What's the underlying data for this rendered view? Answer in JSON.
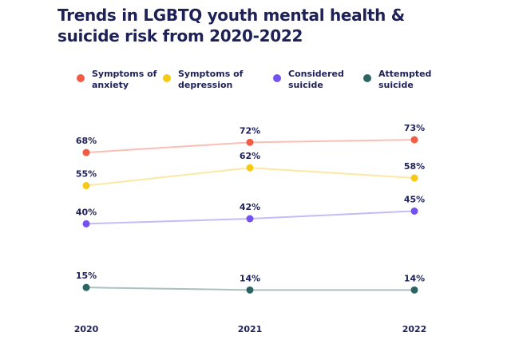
{
  "chart_data": {
    "type": "line",
    "title": "Trends in LGBTQ youth mental health & suicide risk from 2020-2022",
    "categories": [
      "2020",
      "2021",
      "2022"
    ],
    "series": [
      {
        "name": "Symptoms of anxiety",
        "color": "#f25c45",
        "values": [
          68,
          72,
          73
        ],
        "value_labels": [
          "68%",
          "72%",
          "73%"
        ]
      },
      {
        "name": "Symptoms of depression",
        "color": "#f6c916",
        "values": [
          55,
          62,
          58
        ],
        "value_labels": [
          "55%",
          "62%",
          "58%"
        ]
      },
      {
        "name": "Considered suicide",
        "color": "#7452ef",
        "values": [
          40,
          42,
          45
        ],
        "value_labels": [
          "40%",
          "42%",
          "45%"
        ]
      },
      {
        "name": "Attempted suicide",
        "color": "#2c6461",
        "values": [
          15,
          14,
          14
        ],
        "value_labels": [
          "15%",
          "14%",
          "14%"
        ]
      }
    ],
    "ylim": [
      0,
      100
    ]
  }
}
